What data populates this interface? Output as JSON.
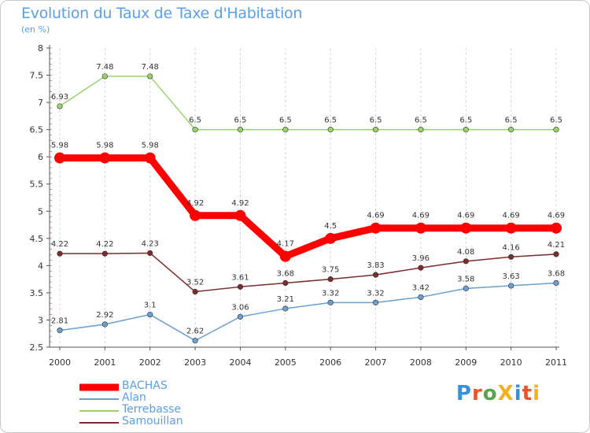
{
  "title": "Evolution du Taux de Taxe d'Habitation",
  "subtitle": "(en %)",
  "logo": {
    "text": "ProXiti",
    "colors": [
      "#3b8fd6",
      "#e8562a",
      "#5aa34a",
      "#f2b21c",
      "#3b8fd6",
      "#e8562a",
      "#f2b21c"
    ]
  },
  "chart_data": {
    "type": "line",
    "title": "Evolution du Taux de Taxe d'Habitation",
    "subtitle": "(en %)",
    "xlabel": "",
    "ylabel": "",
    "x": [
      "2000",
      "2001",
      "2002",
      "2003",
      "2004",
      "2005",
      "2006",
      "2007",
      "2008",
      "2009",
      "2010",
      "2011"
    ],
    "ylim": [
      2.5,
      8
    ],
    "yticks": [
      "2.5",
      "3",
      "3.5",
      "4",
      "4.5",
      "5",
      "5.5",
      "6",
      "6.5",
      "7",
      "7.5",
      "8"
    ],
    "grid": "vertical dashed",
    "legend_position": "bottom-left",
    "series": [
      {
        "name": "BACHAS",
        "color": "#ff0000",
        "width": "thick",
        "values": [
          5.98,
          5.98,
          5.98,
          4.92,
          4.92,
          4.17,
          4.5,
          4.69,
          4.69,
          4.69,
          4.69,
          4.69
        ],
        "labels": [
          "5.98",
          "5.98",
          "5.98",
          "4.92",
          "4.92",
          "4.17",
          "4.5",
          "4.69",
          "4.69",
          "4.69",
          "4.69",
          "4.69"
        ]
      },
      {
        "name": "Alan",
        "color": "#6a9fd0",
        "width": "thin",
        "values": [
          2.81,
          2.92,
          3.1,
          2.62,
          3.06,
          3.21,
          3.32,
          3.32,
          3.42,
          3.58,
          3.63,
          3.68
        ],
        "labels": [
          "2.81",
          "2.92",
          "3.1",
          "2.62",
          "3.06",
          "3.21",
          "3.32",
          "3.32",
          "3.42",
          "3.58",
          "3.63",
          "3.68"
        ]
      },
      {
        "name": "Terrebasse",
        "color": "#99d36a",
        "width": "thin",
        "values": [
          6.93,
          7.48,
          7.48,
          6.5,
          6.5,
          6.5,
          6.5,
          6.5,
          6.5,
          6.5,
          6.5,
          6.5
        ],
        "labels": [
          "6.93",
          "7.48",
          "7.48",
          "6.5",
          "6.5",
          "6.5",
          "6.5",
          "6.5",
          "6.5",
          "6.5",
          "6.5",
          "6.5"
        ]
      },
      {
        "name": "Samouillan",
        "color": "#7d2a2a",
        "width": "thin",
        "values": [
          4.22,
          4.22,
          4.23,
          3.52,
          3.61,
          3.68,
          3.75,
          3.83,
          3.96,
          4.08,
          4.16,
          4.21
        ],
        "labels": [
          "4.22",
          "4.22",
          "4.23",
          "3.52",
          "3.61",
          "3.68",
          "3.75",
          "3.83",
          "3.96",
          "4.08",
          "4.16",
          "4.21"
        ]
      }
    ]
  }
}
